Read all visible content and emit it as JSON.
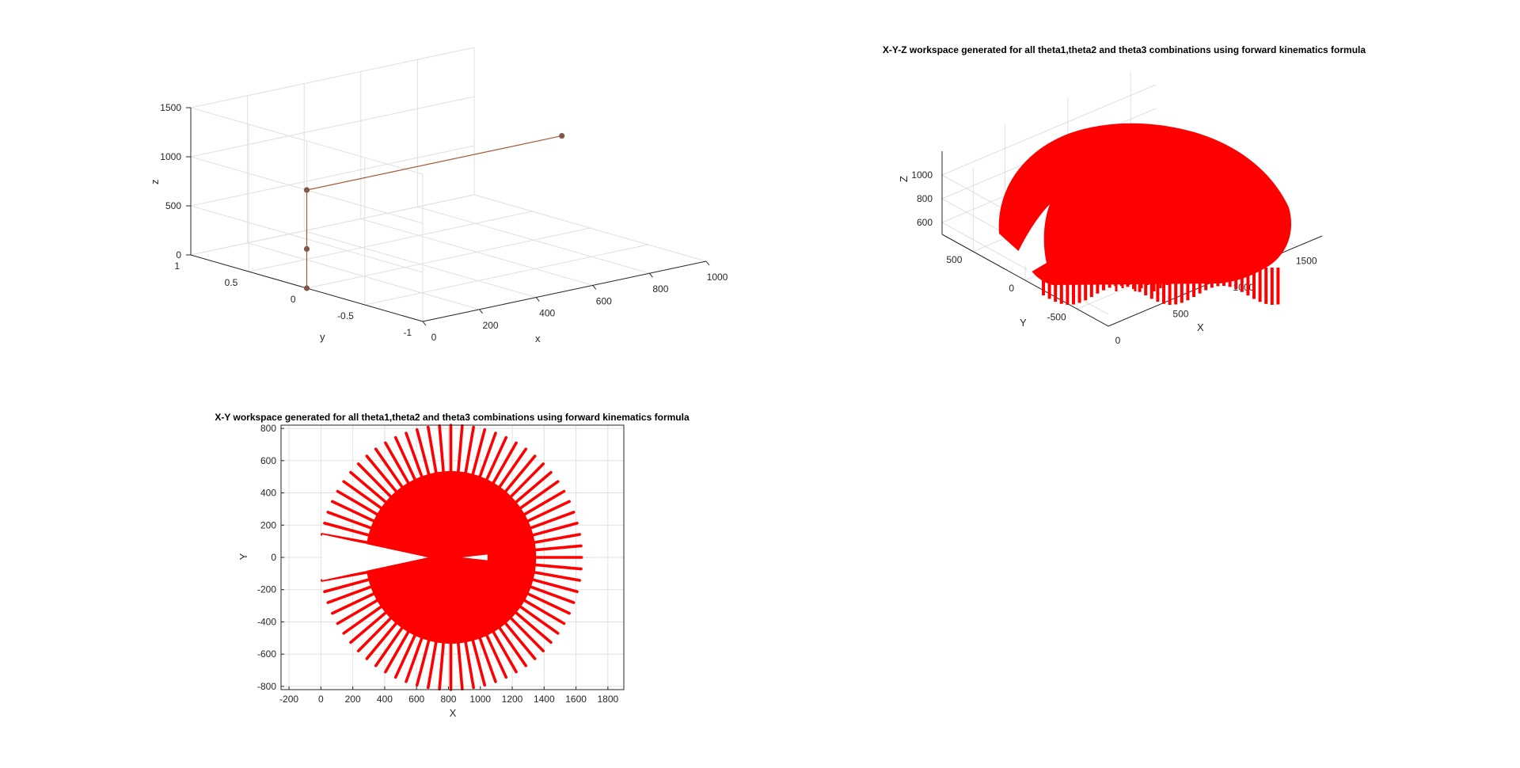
{
  "chart_data": [
    {
      "type": "line",
      "title": "",
      "view": "3d",
      "xlabel": "x",
      "ylabel": "y",
      "zlabel": "z",
      "xlim": [
        0,
        1000
      ],
      "ylim": [
        -1,
        1
      ],
      "zlim": [
        0,
        1500
      ],
      "xticks": [
        "0",
        "200",
        "400",
        "600",
        "800",
        "1000"
      ],
      "yticks": [
        "-1",
        "-0.5",
        "0",
        "0.5",
        "1"
      ],
      "zticks": [
        "0",
        "500",
        "1000",
        "1500"
      ],
      "grid": true,
      "series": [
        {
          "color": "#a65a3a",
          "x": [
            0,
            0,
            0,
            900
          ],
          "y": [
            0,
            0,
            0,
            0
          ],
          "z": [
            0,
            400,
            1000,
            1000
          ]
        }
      ]
    },
    {
      "type": "scatter",
      "view": "3d",
      "title": "X-Y-Z workspace generated for all theta1,theta2 and theta3 combinations using forward kinematics formula",
      "xlabel": "X",
      "ylabel": "Y",
      "zlabel": "Z",
      "xlim": [
        0,
        1700
      ],
      "ylim": [
        -800,
        800
      ],
      "zlim": [
        500,
        1200
      ],
      "xticks": [
        "0",
        "500",
        "1000",
        "1500"
      ],
      "yticks": [
        "-500",
        "0",
        "500"
      ],
      "zticks": [
        "600",
        "800",
        "1000"
      ],
      "grid": true,
      "color": "#ff0000"
    },
    {
      "type": "scatter",
      "title": "X-Y workspace generated for all theta1,theta2 and theta3 combinations using forward kinematics formula",
      "xlabel": "X",
      "ylabel": "Y",
      "xlim": [
        -250,
        1900
      ],
      "ylim": [
        -820,
        820
      ],
      "xticks": [
        "-200",
        "0",
        "200",
        "400",
        "600",
        "800",
        "1000",
        "1200",
        "1400",
        "1600",
        "1800"
      ],
      "yticks": [
        "-800",
        "-600",
        "-400",
        "-200",
        "0",
        "200",
        "400",
        "600",
        "800"
      ],
      "grid": true,
      "color": "#ff0000",
      "workspace": {
        "center": [
          815,
          0
        ],
        "inner_disk_radius": 535,
        "spoke_inner_radius": 260,
        "spoke_outer_radius": 820,
        "spoke_count": 72,
        "excluded_angle_deg": [
          170,
          190
        ]
      }
    }
  ]
}
